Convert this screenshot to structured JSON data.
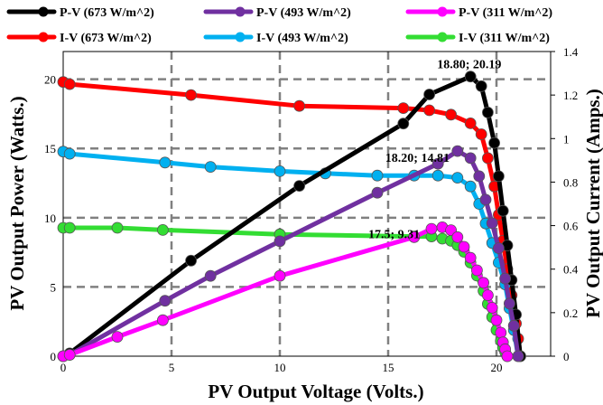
{
  "chart_data": {
    "type": "line",
    "xlabel": "PV Output Voltage (Volts.)",
    "ylabel": "PV Output Power (Watts.)",
    "y2label": "PV Output Current (Amps.)",
    "xlim": [
      0,
      22.5
    ],
    "ylim": [
      0,
      22
    ],
    "y2lim": [
      0,
      1.4
    ],
    "x_ticks": [
      "0",
      "5",
      "10",
      "15",
      "20"
    ],
    "y_ticks": [
      "0",
      "5",
      "10",
      "15",
      "20"
    ],
    "y2_ticks": [
      "0",
      "0.2",
      "0.4",
      "0.6",
      "0.8",
      "1",
      "1.2",
      "1.4"
    ],
    "grid": "dashed",
    "legend_position": "top",
    "series": [
      {
        "name": "P-V (673 W/m^2)",
        "axis": "left",
        "color": "#000000",
        "x": [
          0.0,
          0.3,
          5.9,
          10.9,
          15.7,
          16.9,
          18.8,
          19.3,
          19.6,
          19.9,
          20.1,
          20.3,
          20.5,
          20.7,
          20.9,
          21.1
        ],
        "y": [
          0.0,
          0.2,
          6.9,
          12.3,
          16.8,
          18.9,
          20.19,
          19.5,
          17.6,
          15.4,
          13.0,
          10.5,
          8.0,
          5.5,
          3.0,
          0.0
        ]
      },
      {
        "name": "I-V (673 W/m^2)",
        "axis": "right",
        "color": "#ff0000",
        "x": [
          0.0,
          0.3,
          5.9,
          10.9,
          15.7,
          16.9,
          17.9,
          18.8,
          19.3,
          19.6,
          19.9,
          20.1,
          20.3,
          20.5,
          20.7,
          20.9,
          21.0,
          21.1
        ],
        "y": [
          1.26,
          1.25,
          1.2,
          1.15,
          1.14,
          1.13,
          1.11,
          1.07,
          1.02,
          0.91,
          0.78,
          0.65,
          0.53,
          0.4,
          0.28,
          0.15,
          0.08,
          0.0
        ]
      },
      {
        "name": "P-V (493 W/m^2)",
        "axis": "left",
        "color": "#7030a0",
        "x": [
          0.0,
          0.3,
          4.7,
          6.8,
          10.0,
          14.5,
          17.3,
          18.2,
          18.8,
          19.2,
          19.5,
          19.8,
          20.1,
          20.4,
          20.6,
          20.8,
          21.0
        ],
        "y": [
          0.0,
          0.1,
          4.0,
          5.8,
          8.3,
          11.8,
          13.9,
          14.81,
          14.3,
          13.0,
          11.3,
          9.6,
          7.8,
          5.6,
          3.8,
          2.2,
          0.0
        ]
      },
      {
        "name": "I-V (493 W/m^2)",
        "axis": "right",
        "color": "#00b0f0",
        "x": [
          0.0,
          0.3,
          4.7,
          6.8,
          10.0,
          12.1,
          14.5,
          16.2,
          17.3,
          18.2,
          18.8,
          19.2,
          19.5,
          19.8,
          20.1,
          20.4,
          20.6,
          20.8,
          21.0
        ],
        "y": [
          0.94,
          0.93,
          0.89,
          0.87,
          0.85,
          0.84,
          0.83,
          0.83,
          0.83,
          0.82,
          0.78,
          0.7,
          0.61,
          0.52,
          0.43,
          0.33,
          0.22,
          0.12,
          0.0
        ]
      },
      {
        "name": "P-V (311 W/m^2)",
        "axis": "left",
        "color": "#ff00ff",
        "x": [
          0.0,
          0.3,
          2.5,
          4.6,
          10.0,
          16.2,
          17.0,
          17.5,
          17.9,
          18.2,
          18.5,
          18.8,
          19.1,
          19.4,
          19.6,
          19.8,
          20.0,
          20.2,
          20.3,
          20.4,
          20.5
        ],
        "y": [
          0.0,
          0.1,
          1.4,
          2.6,
          5.8,
          8.6,
          9.2,
          9.31,
          9.1,
          8.6,
          7.9,
          7.1,
          6.2,
          5.3,
          4.4,
          3.5,
          2.6,
          1.7,
          1.0,
          0.5,
          0.0
        ]
      },
      {
        "name": "I-V (311 W/m^2)",
        "axis": "right",
        "color": "#33dd33",
        "x": [
          0.0,
          0.3,
          2.5,
          4.6,
          10.0,
          16.2,
          17.0,
          17.5,
          17.9,
          18.2,
          18.5,
          18.8,
          19.1,
          19.4,
          19.6,
          19.8,
          20.0,
          20.2,
          20.3,
          20.4,
          20.5
        ],
        "y": [
          0.59,
          0.59,
          0.59,
          0.58,
          0.56,
          0.55,
          0.55,
          0.54,
          0.53,
          0.51,
          0.48,
          0.43,
          0.37,
          0.3,
          0.24,
          0.18,
          0.12,
          0.07,
          0.04,
          0.02,
          0.0
        ]
      }
    ],
    "annotations": [
      {
        "text": "18.80; 20.19",
        "x": 18.8,
        "y": 20.19
      },
      {
        "text": "18.20; 14.81",
        "x": 18.2,
        "y": 14.81
      },
      {
        "text": "17.5; 9.31",
        "x": 17.5,
        "y": 9.31
      }
    ],
    "legend_order": [
      0,
      2,
      4,
      1,
      3,
      5
    ]
  }
}
